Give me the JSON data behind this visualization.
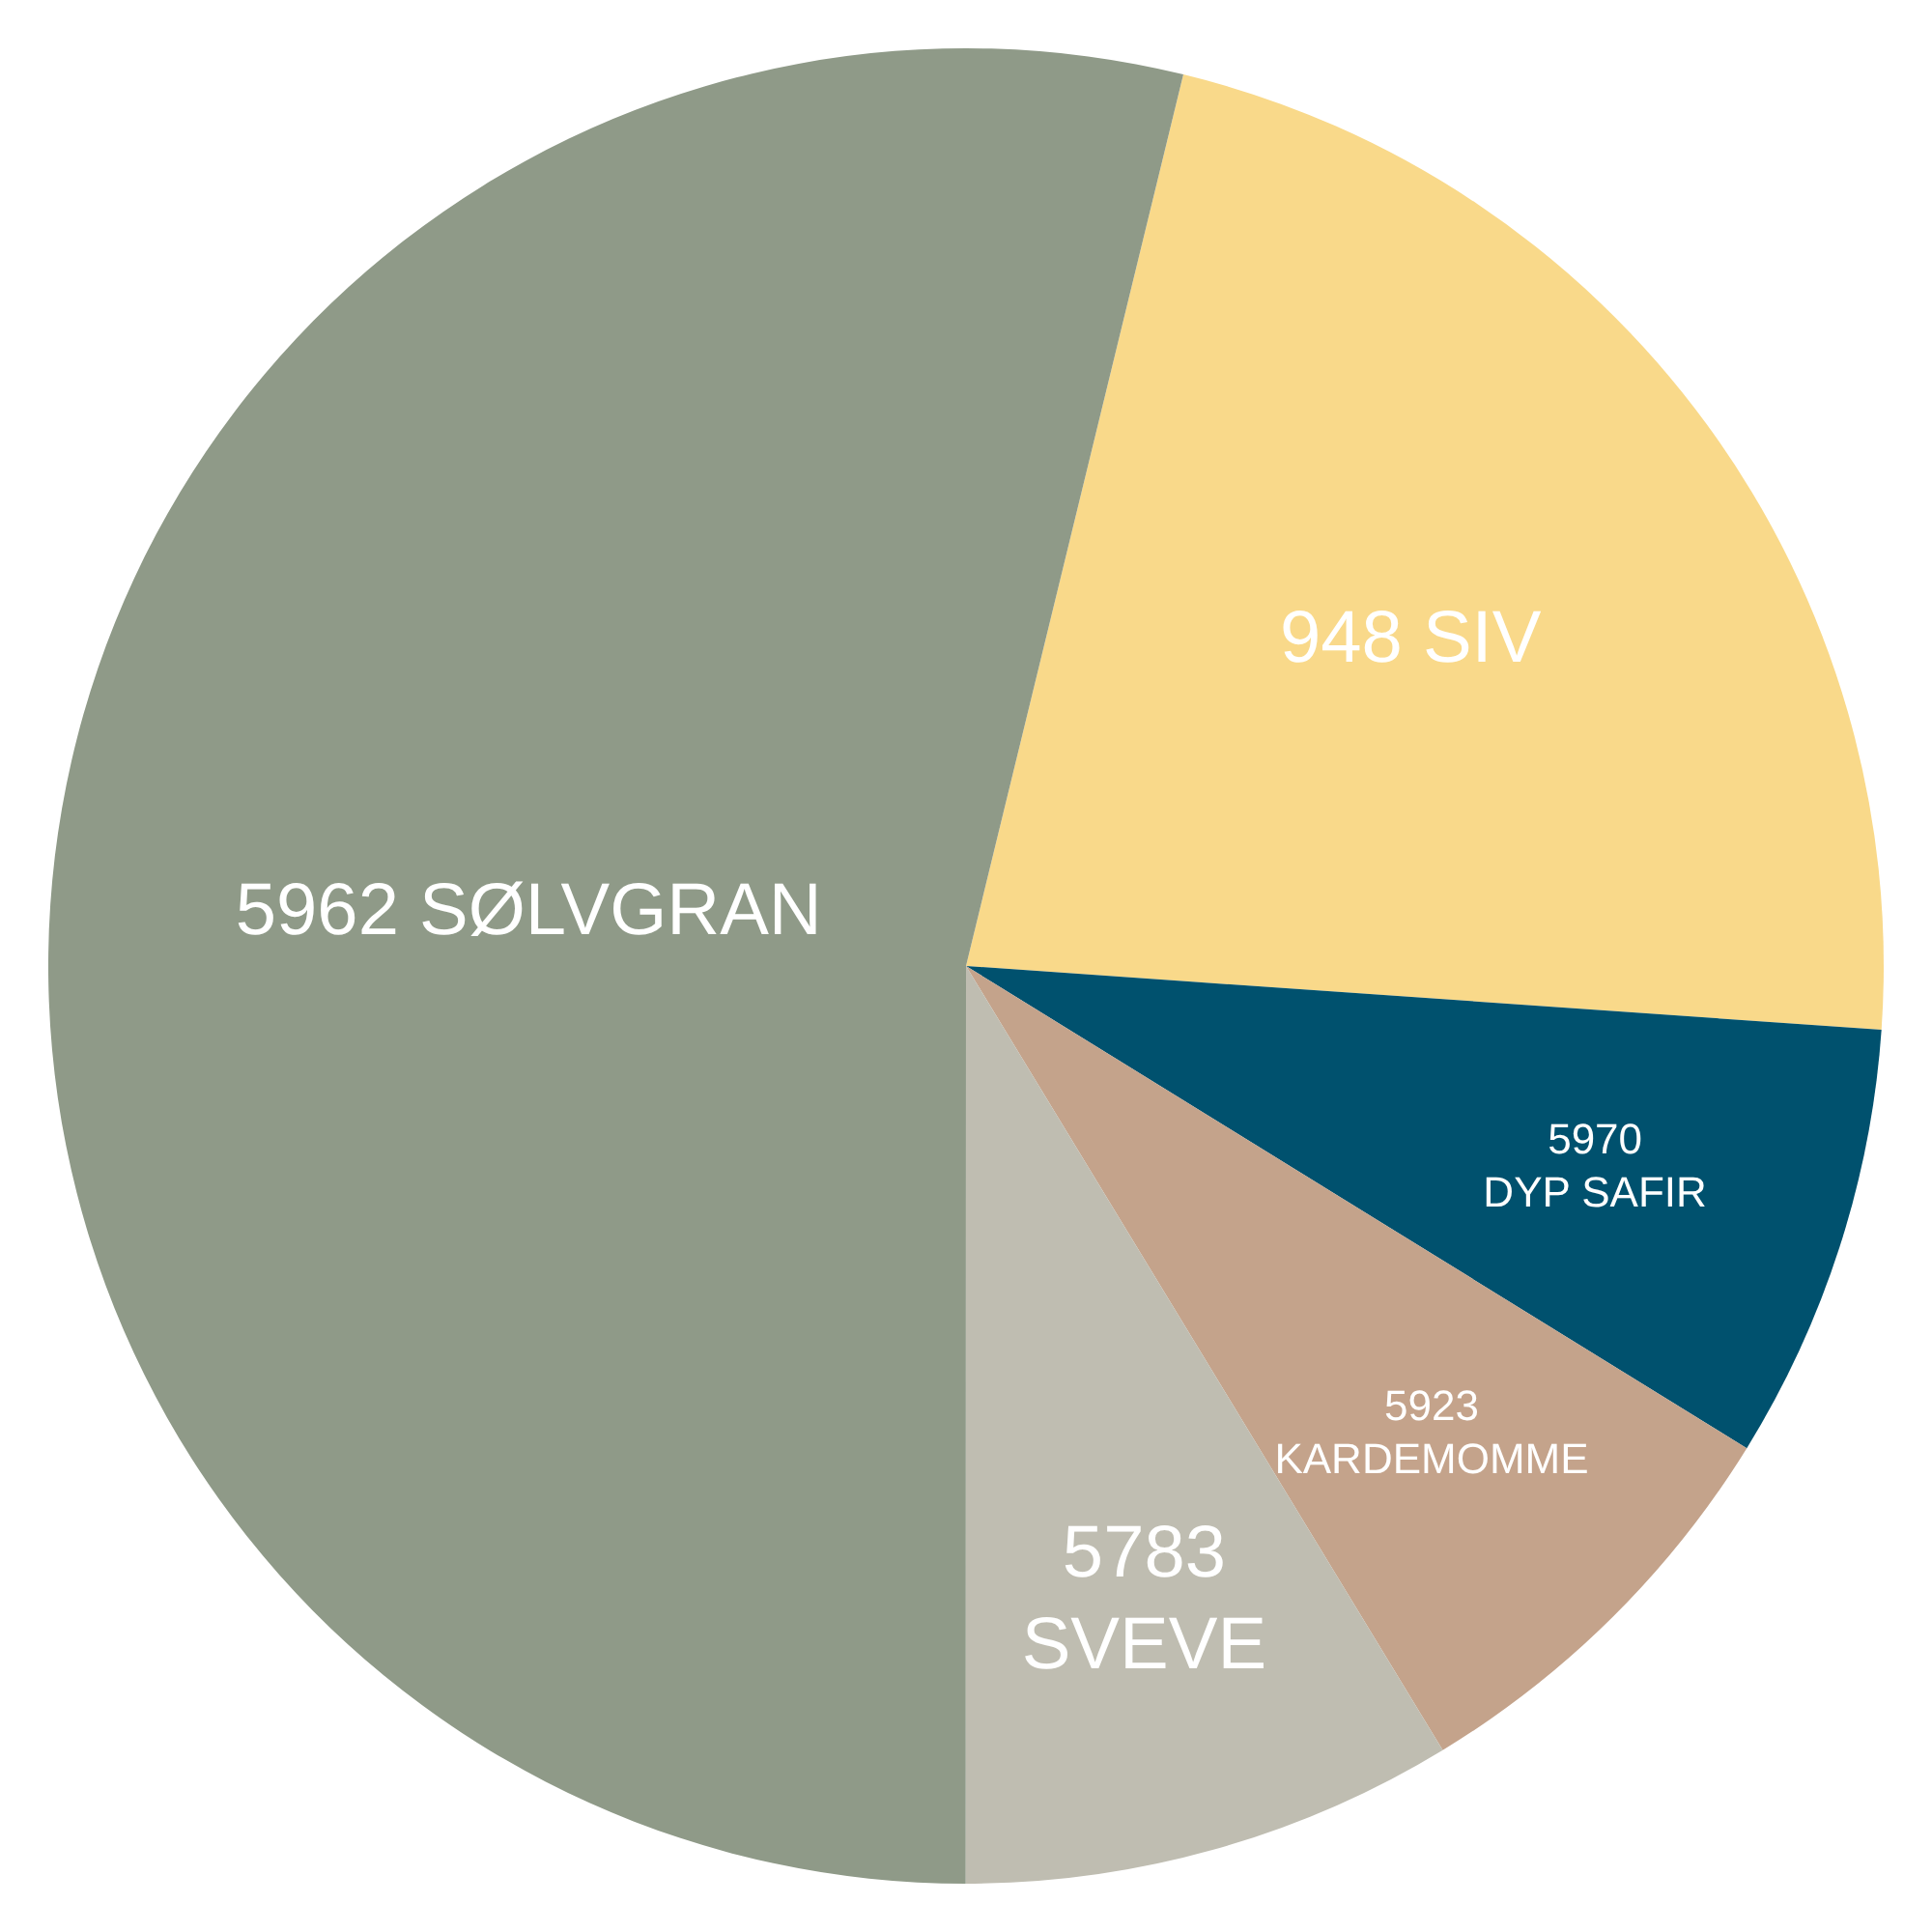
{
  "chart_data": {
    "type": "pie",
    "categories": [
      "948 SIV",
      "5970 DYP SAFIR",
      "5923 KARDEMOMME",
      "5783 SVEVE",
      "5962 SØLVGRAN"
    ],
    "values": [
      22.3,
      7.7,
      7.5,
      8.7,
      53.8
    ],
    "colors": [
      "#f9d98a",
      "#00516e",
      "#c4a38b",
      "#bfbdb1",
      "#8f9a88"
    ],
    "data_labels": false
  }
}
